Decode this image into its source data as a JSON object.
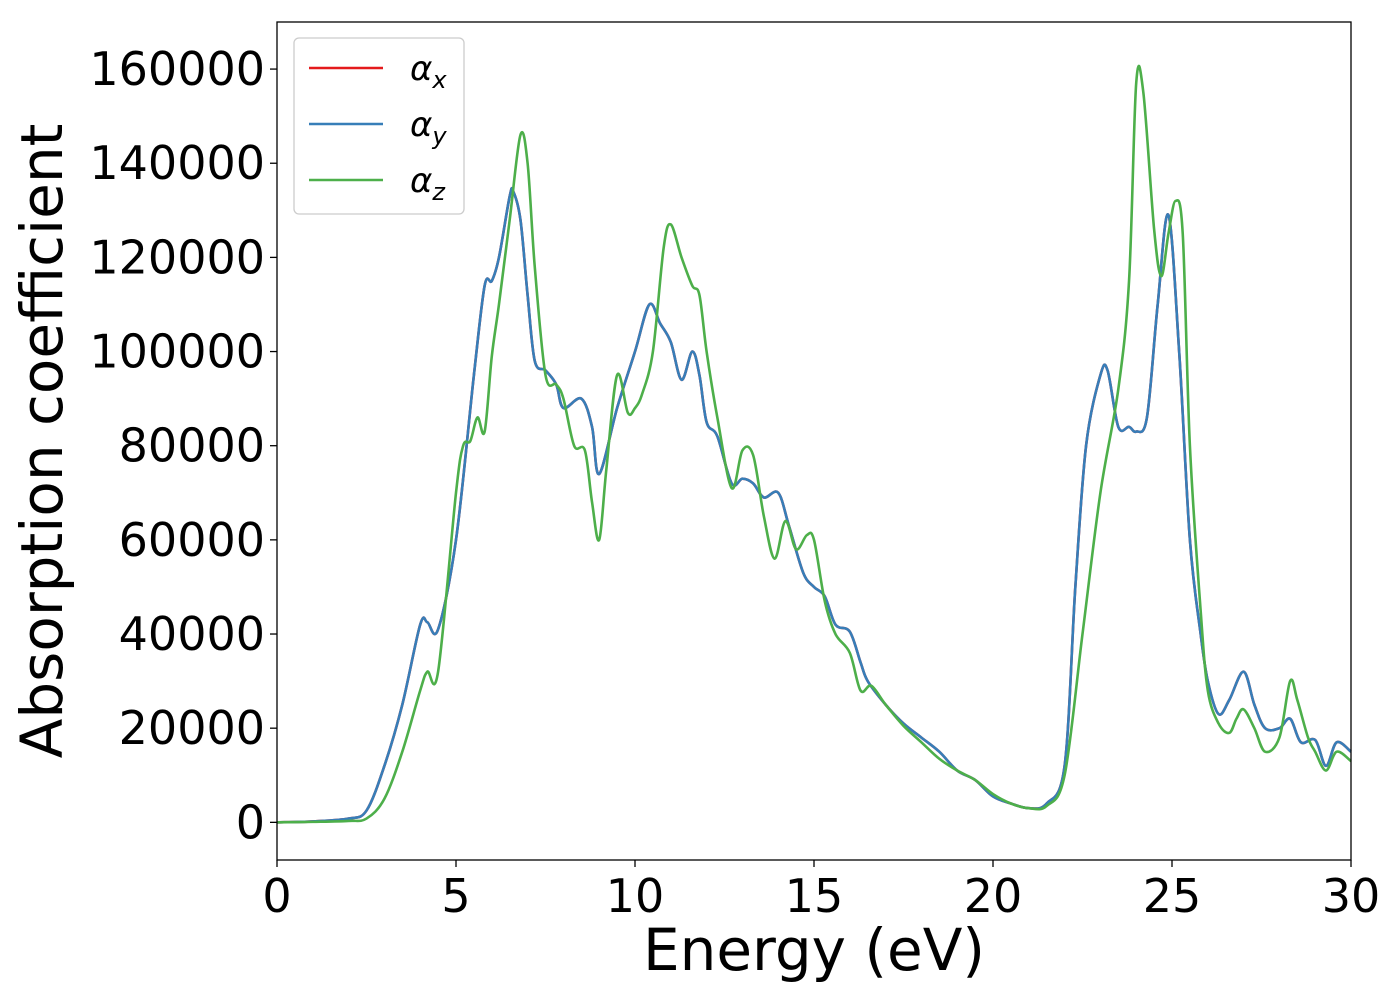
{
  "chart_data": {
    "type": "line",
    "xlabel": "Energy (eV)",
    "ylabel": "Absorption coefficient",
    "xlim": [
      0,
      30
    ],
    "ylim": [
      -8000,
      170000
    ],
    "xticks": [
      0,
      5,
      10,
      15,
      20,
      25,
      30
    ],
    "xtick_labels": [
      "0",
      "5",
      "10",
      "15",
      "20",
      "25",
      "30"
    ],
    "yticks": [
      0,
      20000,
      40000,
      60000,
      80000,
      100000,
      120000,
      140000,
      160000
    ],
    "ytick_labels": [
      "0",
      "20000",
      "40000",
      "60000",
      "80000",
      "100000",
      "120000",
      "140000",
      "160000"
    ],
    "grid": false,
    "legend_position": "top-left",
    "series": [
      {
        "name": "α_x",
        "symbol": "α",
        "subscript": "x",
        "color": "#e41a1c",
        "x": [
          0,
          1,
          2,
          2.5,
          3,
          3.5,
          4,
          4.2,
          4.5,
          5,
          5.5,
          5.8,
          6,
          6.2,
          6.5,
          6.6,
          6.8,
          7,
          7.2,
          7.5,
          7.8,
          8,
          8.5,
          8.8,
          9,
          9.5,
          10,
          10.4,
          10.7,
          11,
          11.3,
          11.6,
          11.8,
          12,
          12.3,
          12.7,
          13,
          13.3,
          13.6,
          14,
          14.3,
          14.7,
          15,
          15.3,
          15.6,
          16,
          16.3,
          16.5,
          17,
          17.5,
          18,
          18.5,
          19,
          19.5,
          20,
          20.5,
          21,
          21.5,
          22,
          22.3,
          22.6,
          23,
          23.2,
          23.5,
          23.8,
          24,
          24.3,
          24.6,
          24.9,
          25.2,
          25.5,
          25.8,
          26,
          26.3,
          26.6,
          27,
          27.3,
          27.6,
          28,
          28.3,
          28.6,
          29,
          29.3,
          29.6,
          30
        ],
        "values": [
          0,
          200,
          800,
          2500,
          12000,
          25000,
          42000,
          42500,
          41000,
          60000,
          95000,
          114000,
          115000,
          120000,
          133000,
          134000,
          128000,
          112000,
          98000,
          96000,
          93000,
          88000,
          90000,
          84000,
          74000,
          88000,
          100000,
          110000,
          106000,
          102000,
          94000,
          100000,
          95000,
          85000,
          82000,
          72000,
          73000,
          72000,
          69000,
          70000,
          63000,
          53000,
          50000,
          48000,
          42000,
          40500,
          34000,
          30000,
          25000,
          21000,
          18000,
          15000,
          11000,
          9000,
          5500,
          4000,
          3000,
          4000,
          12000,
          50000,
          80000,
          95000,
          96000,
          84000,
          84000,
          83000,
          86000,
          110000,
          129000,
          100000,
          60000,
          40000,
          30000,
          23000,
          26000,
          32000,
          25000,
          20000,
          20000,
          22000,
          17000,
          17500,
          12000,
          17000,
          15000
        ]
      },
      {
        "name": "α_y",
        "symbol": "α",
        "subscript": "y",
        "color": "#377eb8",
        "x": [
          0,
          1,
          2,
          2.5,
          3,
          3.5,
          4,
          4.2,
          4.5,
          5,
          5.5,
          5.8,
          6,
          6.2,
          6.5,
          6.6,
          6.8,
          7,
          7.2,
          7.5,
          7.8,
          8,
          8.5,
          8.8,
          9,
          9.5,
          10,
          10.4,
          10.7,
          11,
          11.3,
          11.6,
          11.8,
          12,
          12.3,
          12.7,
          13,
          13.3,
          13.6,
          14,
          14.3,
          14.7,
          15,
          15.3,
          15.6,
          16,
          16.3,
          16.5,
          17,
          17.5,
          18,
          18.5,
          19,
          19.5,
          20,
          20.5,
          21,
          21.5,
          22,
          22.3,
          22.6,
          23,
          23.2,
          23.5,
          23.8,
          24,
          24.3,
          24.6,
          24.9,
          25.2,
          25.5,
          25.8,
          26,
          26.3,
          26.6,
          27,
          27.3,
          27.6,
          28,
          28.3,
          28.6,
          29,
          29.3,
          29.6,
          30
        ],
        "values": [
          0,
          200,
          800,
          2500,
          12000,
          25000,
          42000,
          42500,
          41000,
          60000,
          95000,
          114000,
          115000,
          120000,
          133000,
          134000,
          128000,
          112000,
          98000,
          96000,
          93000,
          88000,
          90000,
          84000,
          74000,
          88000,
          100000,
          110000,
          106000,
          102000,
          94000,
          100000,
          95000,
          85000,
          82000,
          72000,
          73000,
          72000,
          69000,
          70000,
          63000,
          53000,
          50000,
          48000,
          42000,
          40500,
          34000,
          30000,
          25000,
          21000,
          18000,
          15000,
          11000,
          9000,
          5500,
          4000,
          3000,
          4000,
          12000,
          50000,
          80000,
          95000,
          96000,
          84000,
          84000,
          83000,
          86000,
          110000,
          129000,
          100000,
          60000,
          40000,
          30000,
          23000,
          26000,
          32000,
          25000,
          20000,
          20000,
          22000,
          17000,
          17500,
          12000,
          17000,
          15000
        ]
      },
      {
        "name": "α_z",
        "symbol": "α",
        "subscript": "z",
        "color": "#4daf4a",
        "x": [
          0,
          1,
          2,
          2.5,
          3,
          3.5,
          4,
          4.2,
          4.5,
          5,
          5.2,
          5.4,
          5.6,
          5.8,
          6,
          6.2,
          6.5,
          6.8,
          7,
          7.2,
          7.5,
          7.8,
          8,
          8.3,
          8.6,
          8.8,
          9,
          9.2,
          9.5,
          9.8,
          10,
          10.2,
          10.5,
          10.8,
          11,
          11.3,
          11.6,
          11.8,
          12,
          12.3,
          12.7,
          13,
          13.3,
          13.6,
          13.9,
          14.2,
          14.5,
          14.8,
          15,
          15.3,
          15.6,
          16,
          16.3,
          16.6,
          17,
          17.5,
          18,
          18.5,
          19,
          19.5,
          20,
          20.5,
          21,
          21.5,
          22,
          22.5,
          23,
          23.5,
          23.8,
          24,
          24.2,
          24.5,
          24.7,
          24.9,
          25.1,
          25.3,
          25.5,
          25.8,
          26,
          26.3,
          26.6,
          26.8,
          27,
          27.3,
          27.6,
          28,
          28.3,
          28.5,
          28.8,
          29,
          29.3,
          29.6,
          30
        ],
        "values": [
          0,
          100,
          300,
          800,
          5000,
          15000,
          28000,
          32000,
          32000,
          70000,
          80000,
          81000,
          86000,
          83000,
          99000,
          110000,
          128000,
          146000,
          140000,
          118000,
          95000,
          93000,
          90000,
          80000,
          79000,
          68000,
          60000,
          75000,
          95000,
          87000,
          88000,
          91000,
          100000,
          122000,
          127000,
          120000,
          114000,
          112000,
          100000,
          86000,
          71000,
          79000,
          78000,
          65000,
          56000,
          64000,
          58000,
          61000,
          60000,
          47000,
          40000,
          36000,
          28000,
          29000,
          25000,
          20500,
          17000,
          13500,
          11000,
          9000,
          6000,
          4000,
          3000,
          3500,
          10000,
          40000,
          70000,
          92000,
          115000,
          157000,
          155000,
          126000,
          116000,
          125000,
          132000,
          125000,
          80000,
          45000,
          28000,
          21000,
          19000,
          22000,
          24000,
          20000,
          15000,
          18000,
          30000,
          26000,
          18000,
          15000,
          11000,
          15000,
          13000
        ]
      }
    ]
  }
}
